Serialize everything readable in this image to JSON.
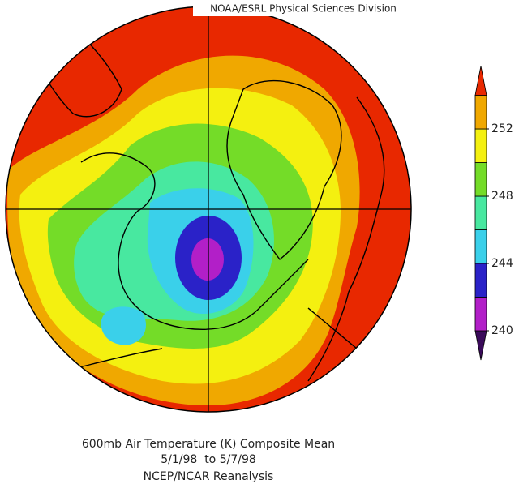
{
  "header": {
    "source": "NOAA/ESRL Physical Sciences Division"
  },
  "colorbar": {
    "ticks": [
      240,
      244,
      248,
      252
    ],
    "clim": [
      240,
      254
    ],
    "colors": [
      "#3a0a5a",
      "#b21fc8",
      "#2a22c8",
      "#3ad0ea",
      "#48e8a0",
      "#74dc28",
      "#f4f010",
      "#f0a800",
      "#e82800"
    ]
  },
  "caption": {
    "title": "600mb Air Temperature (K) Composite Mean",
    "dates": "5/1/98  to 5/7/98",
    "source": "NCEP/NCAR Reanalysis"
  }
}
